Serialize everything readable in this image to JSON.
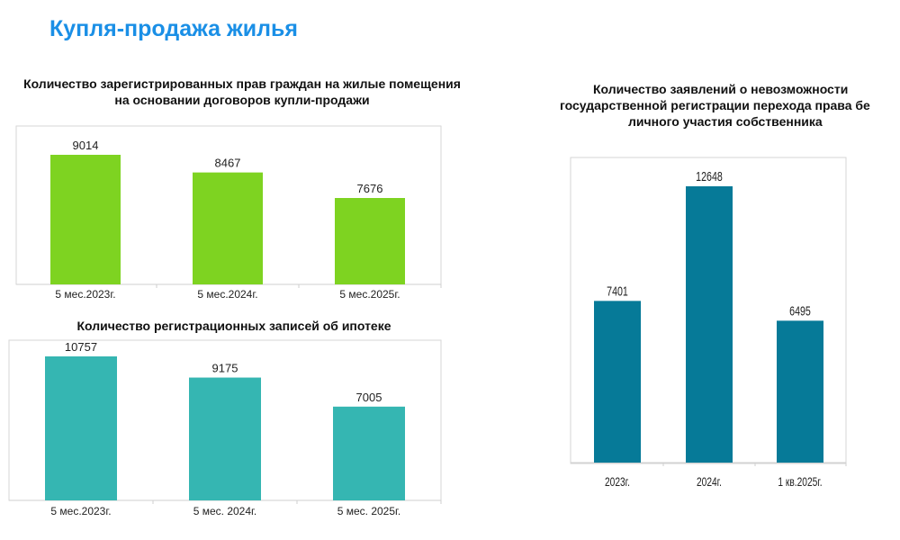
{
  "page": {
    "title": "Купля-продажа жилья",
    "title_color": "#1a8fe6"
  },
  "chart_data": [
    {
      "type": "bar",
      "title": "Количество зарегистрированных прав граждан на жилые помещения на основании договоров купли-продажи",
      "title_lines": [
        "Количество зарегистрированных прав граждан на жилые помещения",
        "на основании договоров купли-продажи"
      ],
      "categories": [
        "5 мес.2023г.",
        "5 мес.2024г.",
        "5 мес.2025г."
      ],
      "values": [
        9014,
        8467,
        7676
      ],
      "bar_color": "#7ed321",
      "ylim": [
        5000,
        9500
      ],
      "grid": false,
      "legend": "none"
    },
    {
      "type": "bar",
      "title": "Количество регистрационных записей об ипотеке",
      "title_lines": [
        "Количество регистрационных записей об ипотеке"
      ],
      "categories": [
        "5 мес.2023г.",
        "5 мес. 2024г.",
        "5 мес. 2025г."
      ],
      "values": [
        10757,
        9175,
        7005
      ],
      "bar_color": "#35b6b2",
      "ylim": [
        0,
        11000
      ],
      "grid": false,
      "legend": "none"
    },
    {
      "type": "bar",
      "title": "Количество заявлений о невозможности государственной регистрации перехода права без личного участия собственника",
      "title_lines": [
        "Количество заявлений о невозможности",
        "государственной регистрации перехода права бе",
        "личного участия собственника"
      ],
      "categories": [
        "2023г.",
        "2024г.",
        "1 кв.2025г."
      ],
      "values": [
        7401,
        12648,
        6495
      ],
      "bar_color": "#067a98",
      "ylim": [
        0,
        13500
      ],
      "grid": false,
      "legend": "none"
    }
  ]
}
